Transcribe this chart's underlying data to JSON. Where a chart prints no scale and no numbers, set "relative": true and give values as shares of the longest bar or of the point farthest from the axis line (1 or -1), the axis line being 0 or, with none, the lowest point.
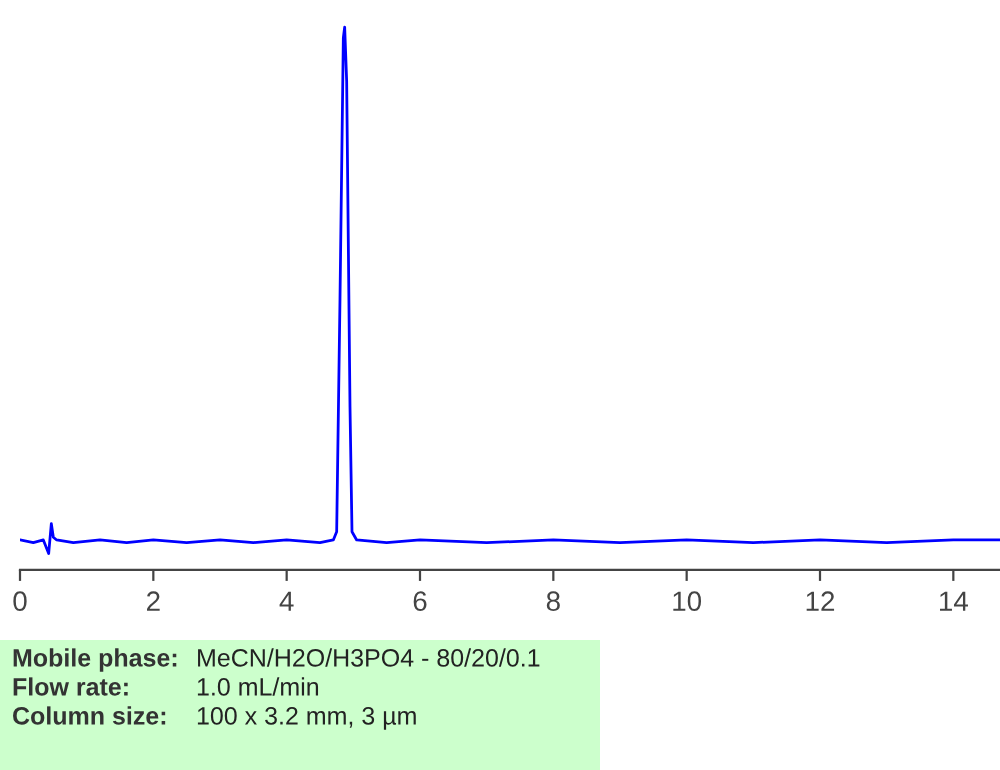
{
  "chart_data": {
    "type": "line",
    "relative": true,
    "x": [
      0,
      0.2,
      0.35,
      0.43,
      0.47,
      0.5,
      0.55,
      0.8,
      1.2,
      1.6,
      2.0,
      2.5,
      3.0,
      3.5,
      4.0,
      4.5,
      4.7,
      4.75,
      4.8,
      4.85,
      4.87,
      4.9,
      4.95,
      4.98,
      5.05,
      5.5,
      6.0,
      7.0,
      8.0,
      9.0,
      10.0,
      11.0,
      12.0,
      13.0,
      14.0,
      14.7
    ],
    "series": [
      {
        "color": "#0000ff",
        "values": [
          0.055,
          0.05,
          0.055,
          0.03,
          0.085,
          0.06,
          0.055,
          0.05,
          0.055,
          0.05,
          0.055,
          0.05,
          0.055,
          0.05,
          0.055,
          0.05,
          0.055,
          0.07,
          0.5,
          0.98,
          1.0,
          0.9,
          0.3,
          0.07,
          0.055,
          0.05,
          0.055,
          0.05,
          0.055,
          0.05,
          0.055,
          0.05,
          0.055,
          0.05,
          0.055,
          0.055
        ]
      }
    ],
    "xlim": [
      0,
      14.7
    ],
    "xticks": [
      0,
      2,
      4,
      6,
      8,
      10,
      12,
      14
    ],
    "grid": false,
    "legend": false,
    "marker": "none",
    "line_style": "solid",
    "annotations": [
      "Mobile phase:",
      "MeCN/H2O/H3PO4 - 80/20/0.1",
      "Flow rate:",
      "1.0 mL/min",
      "Column size:",
      "100 x 3.2 mm, 3 µm"
    ]
  }
}
